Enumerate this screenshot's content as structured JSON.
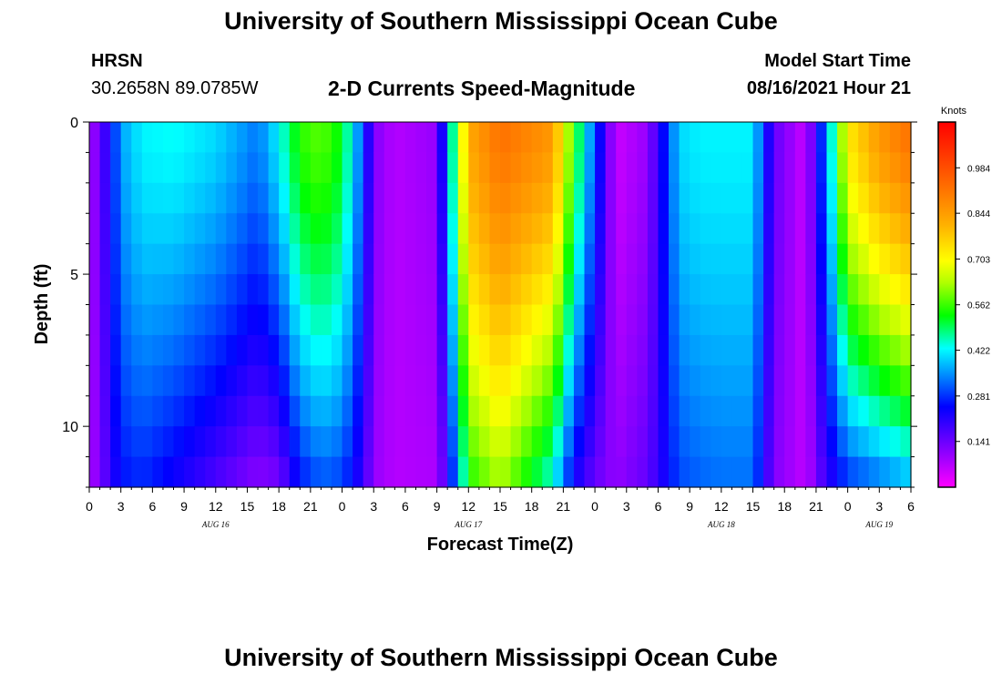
{
  "header": {
    "title": "University of Southern Mississippi Ocean Cube",
    "station": "HRSN",
    "coords": "30.2658N  89.0785W",
    "subtitle": "2-D Currents Speed-Magnitude",
    "start_label": "Model Start Time",
    "start_value": "08/16/2021 Hour 21"
  },
  "footer": {
    "title": "University of Southern Mississippi Ocean Cube"
  },
  "chart_data": {
    "type": "heatmap",
    "title": "2-D Currents Speed-Magnitude",
    "xlabel": "Forecast Time(Z)",
    "ylabel": "Depth (ft)",
    "xlim": [
      0,
      78
    ],
    "ylim": [
      12,
      0
    ],
    "x_tick_labels": [
      "0",
      "3",
      "6",
      "9",
      "12",
      "15",
      "18",
      "21",
      "0",
      "3",
      "6",
      "9",
      "12",
      "15",
      "18",
      "21",
      "0",
      "3",
      "6",
      "9",
      "12",
      "15",
      "18",
      "21",
      "0",
      "3",
      "6"
    ],
    "y_tick_labels": [
      "0",
      "5",
      "10"
    ],
    "date_labels": [
      {
        "label": "AUG 16",
        "x": 12
      },
      {
        "label": "AUG 17",
        "x": 36
      },
      {
        "label": "AUG 18",
        "x": 60
      },
      {
        "label": "AUG 19",
        "x": 75
      }
    ],
    "colorbar": {
      "label": "Knots",
      "ticks": [
        "0.984",
        "0.844",
        "0.703",
        "0.562",
        "0.422",
        "0.281",
        "0.141"
      ],
      "range": [
        0,
        1.125
      ]
    },
    "time_steps": 78,
    "depth_levels": 12,
    "speed_profiles_knots": [
      {
        "hour": 0,
        "surface": 0.08,
        "bottom": 0.08
      },
      {
        "hour": 1,
        "surface": 0.14,
        "bottom": 0.12
      },
      {
        "hour": 2,
        "surface": 0.24,
        "bottom": 0.2
      },
      {
        "hour": 3,
        "surface": 0.36,
        "bottom": 0.26
      },
      {
        "hour": 5,
        "surface": 0.42,
        "bottom": 0.28
      },
      {
        "hour": 8,
        "surface": 0.43,
        "bottom": 0.24
      },
      {
        "hour": 12,
        "surface": 0.4,
        "bottom": 0.18
      },
      {
        "hour": 16,
        "surface": 0.33,
        "bottom": 0.12
      },
      {
        "hour": 18,
        "surface": 0.42,
        "bottom": 0.14
      },
      {
        "hour": 20,
        "surface": 0.55,
        "bottom": 0.27
      },
      {
        "hour": 22,
        "surface": 0.58,
        "bottom": 0.32
      },
      {
        "hour": 24,
        "surface": 0.52,
        "bottom": 0.3
      },
      {
        "hour": 26,
        "surface": 0.3,
        "bottom": 0.2
      },
      {
        "hour": 27,
        "surface": 0.12,
        "bottom": 0.1
      },
      {
        "hour": 29,
        "surface": 0.07,
        "bottom": 0.07
      },
      {
        "hour": 33,
        "surface": 0.1,
        "bottom": 0.08
      },
      {
        "hour": 34,
        "surface": 0.35,
        "bottom": 0.2
      },
      {
        "hour": 36,
        "surface": 0.82,
        "bottom": 0.55
      },
      {
        "hour": 39,
        "surface": 0.92,
        "bottom": 0.64
      },
      {
        "hour": 44,
        "surface": 0.85,
        "bottom": 0.45
      },
      {
        "hour": 46,
        "surface": 0.55,
        "bottom": 0.24
      },
      {
        "hour": 48,
        "surface": 0.3,
        "bottom": 0.15
      },
      {
        "hour": 50,
        "surface": 0.05,
        "bottom": 0.1
      },
      {
        "hour": 53,
        "surface": 0.1,
        "bottom": 0.15
      },
      {
        "hour": 56,
        "surface": 0.4,
        "bottom": 0.3
      },
      {
        "hour": 58,
        "surface": 0.42,
        "bottom": 0.32
      },
      {
        "hour": 60,
        "surface": 0.42,
        "bottom": 0.33
      },
      {
        "hour": 63,
        "surface": 0.42,
        "bottom": 0.33
      },
      {
        "hour": 65,
        "surface": 0.15,
        "bottom": 0.12
      },
      {
        "hour": 68,
        "surface": 0.05,
        "bottom": 0.06
      },
      {
        "hour": 70,
        "surface": 0.35,
        "bottom": 0.2
      },
      {
        "hour": 72,
        "surface": 0.72,
        "bottom": 0.3
      },
      {
        "hour": 75,
        "surface": 0.85,
        "bottom": 0.35
      },
      {
        "hour": 78,
        "surface": 0.92,
        "bottom": 0.4
      }
    ]
  }
}
